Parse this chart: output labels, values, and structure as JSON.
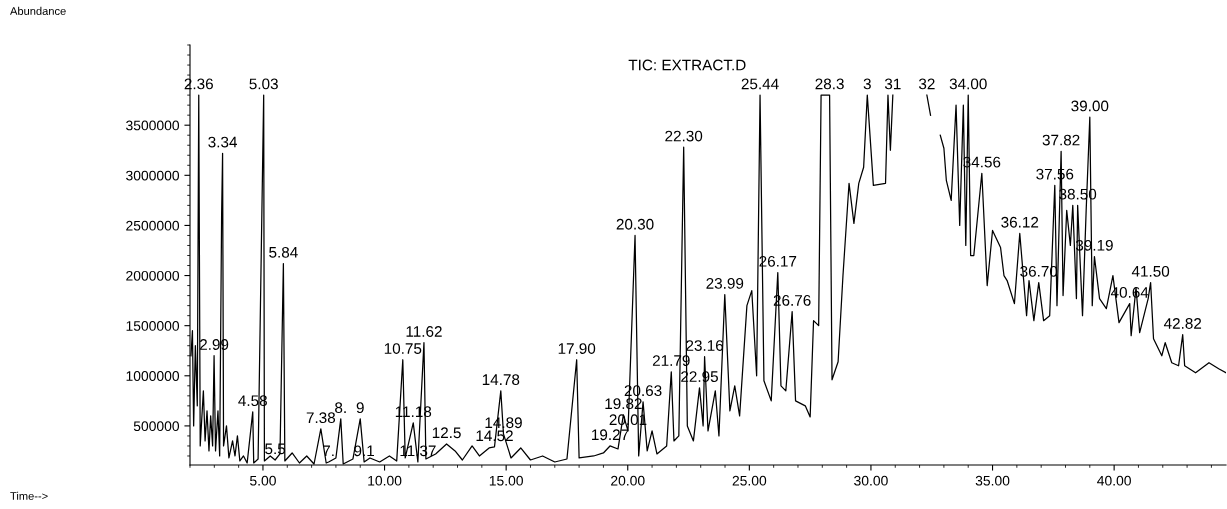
{
  "chart_data": {
    "type": "line",
    "title": "TIC: EXTRACT.D",
    "color": "#000000",
    "x": [
      2.04,
      2.1,
      2.15,
      2.22,
      2.3,
      2.36,
      2.42,
      2.55,
      2.62,
      2.7,
      2.78,
      2.85,
      2.93,
      2.99,
      3.05,
      3.15,
      3.22,
      3.3,
      3.34,
      3.38,
      3.5,
      3.6,
      3.75,
      3.85,
      3.95,
      4.05,
      4.2,
      4.35,
      4.58,
      4.62,
      4.8,
      5.03,
      5.06,
      5.3,
      5.5,
      5.7,
      5.84,
      5.9,
      6.2,
      6.5,
      6.8,
      7.1,
      7.38,
      7.6,
      7.7,
      8.0,
      8.2,
      8.3,
      8.7,
      9.0,
      9.16,
      9.4,
      9.8,
      10.2,
      10.5,
      10.75,
      10.85,
      11.18,
      11.37,
      11.62,
      11.7,
      12.1,
      12.55,
      12.9,
      13.2,
      13.6,
      13.9,
      14.3,
      14.52,
      14.78,
      14.89,
      15.2,
      15.6,
      16.0,
      16.5,
      17.0,
      17.5,
      17.9,
      18.0,
      18.6,
      19.0,
      19.27,
      19.6,
      19.82,
      20.01,
      20.3,
      20.45,
      20.63,
      20.8,
      21.0,
      21.2,
      21.6,
      21.79,
      21.9,
      22.1,
      22.3,
      22.45,
      22.7,
      22.95,
      23.1,
      23.16,
      23.3,
      23.6,
      23.75,
      23.99,
      24.2,
      24.4,
      24.6,
      24.9,
      25.1,
      25.3,
      25.44,
      25.6,
      25.9,
      26.17,
      26.3,
      26.5,
      26.76,
      26.9,
      27.3,
      27.5,
      27.64,
      27.85,
      27.95,
      28.3,
      28.4,
      28.65,
      28.85,
      29.1,
      29.3,
      29.5,
      29.7,
      29.85,
      30.1,
      30.6,
      30.7,
      30.8,
      30.9,
      31.5,
      32.0,
      32.3,
      32.45,
      32.7,
      32.85,
      33.0,
      33.1,
      33.2,
      33.3,
      33.5,
      33.65,
      33.8,
      33.9,
      34.0,
      34.1,
      34.23,
      34.56,
      34.78,
      35.0,
      35.33,
      35.47,
      35.6,
      35.9,
      36.12,
      36.4,
      36.5,
      36.7,
      36.9,
      37.1,
      37.35,
      37.56,
      37.65,
      37.82,
      37.9,
      38.05,
      38.2,
      38.3,
      38.45,
      38.5,
      38.7,
      38.85,
      39.0,
      39.1,
      39.19,
      39.4,
      39.68,
      39.95,
      40.2,
      40.64,
      40.7,
      40.9,
      41.05,
      41.4,
      41.5,
      41.62,
      41.96,
      42.1,
      42.37,
      42.65,
      42.82,
      42.9,
      43.35,
      43.9,
      44.3,
      44.6
    ],
    "values": [
      1200000,
      1450000,
      500000,
      1300000,
      700000,
      3800000,
      300000,
      850000,
      350000,
      650000,
      250000,
      600000,
      300000,
      1200000,
      250000,
      650000,
      200000,
      2600000,
      3220000,
      300000,
      500000,
      180000,
      350000,
      200000,
      400000,
      150000,
      200000,
      130000,
      640000,
      130000,
      170000,
      3800000,
      150000,
      200000,
      160000,
      220000,
      2120000,
      150000,
      230000,
      130000,
      200000,
      120000,
      470000,
      130000,
      140000,
      180000,
      570000,
      120000,
      170000,
      570000,
      140000,
      180000,
      140000,
      200000,
      150000,
      1160000,
      180000,
      530000,
      140000,
      1330000,
      170000,
      220000,
      320000,
      250000,
      160000,
      300000,
      200000,
      280000,
      290000,
      850000,
      420000,
      180000,
      280000,
      160000,
      200000,
      140000,
      170000,
      1160000,
      180000,
      200000,
      230000,
      300000,
      270000,
      610000,
      450000,
      2400000,
      200000,
      740000,
      250000,
      450000,
      220000,
      300000,
      1040000,
      350000,
      400000,
      3280000,
      500000,
      350000,
      880000,
      500000,
      1190000,
      450000,
      850000,
      400000,
      1810000,
      650000,
      900000,
      600000,
      1700000,
      1850000,
      1000000,
      3800000,
      950000,
      750000,
      2030000,
      900000,
      850000,
      1640000,
      750000,
      700000,
      590000,
      1550000,
      1500000,
      3800000,
      3800000,
      960000,
      1140000,
      2000000,
      2920000,
      2520000,
      2920000,
      3080000,
      3800000,
      2900000,
      2920000,
      3800000,
      3250000,
      3800000,
      null,
      null,
      3800000,
      3600000,
      null,
      3400000,
      3270000,
      2950000,
      2850000,
      2750000,
      3700000,
      2500000,
      3700000,
      2300000,
      3800000,
      2200000,
      2200000,
      3020000,
      1900000,
      2450000,
      2280000,
      2000000,
      1950000,
      1720000,
      2420000,
      1600000,
      1950000,
      1550000,
      1930000,
      1550000,
      1600000,
      2900000,
      1700000,
      3240000,
      1800000,
      2650000,
      2300000,
      2700000,
      1770000,
      2700000,
      1600000,
      2650000,
      3580000,
      1700000,
      2190000,
      1770000,
      1670000,
      2000000,
      1530000,
      1720000,
      1400000,
      1880000,
      1430000,
      1770000,
      1930000,
      1370000,
      1200000,
      1330000,
      1130000,
      1100000,
      1410000,
      1100000,
      1030000,
      1130000,
      1070000,
      1030000
    ],
    "xlim": [
      2.0,
      44.6
    ],
    "ylim": [
      110000,
      4300000
    ],
    "xticks": [
      {
        "value": 5,
        "label": "5.00"
      },
      {
        "value": 10,
        "label": "10.00"
      },
      {
        "value": 15,
        "label": "15.00"
      },
      {
        "value": 20,
        "label": "20.00"
      },
      {
        "value": 25,
        "label": "25.00"
      },
      {
        "value": 30,
        "label": "30.00"
      },
      {
        "value": 35,
        "label": "35.00"
      },
      {
        "value": 40,
        "label": "40.00"
      }
    ],
    "yticks": [
      500000,
      1000000,
      1500000,
      2000000,
      2500000,
      3000000,
      3500000
    ],
    "annotations": [
      "Abundance",
      "Time-->",
      {
        "text": "2.36",
        "x": 2.36,
        "y": 3800000
      },
      {
        "text": "5.03",
        "x": 5.03,
        "y": 3800000
      },
      {
        "text": "3.34",
        "x": 3.34,
        "y": 3220000
      },
      {
        "text": "5.84",
        "x": 5.84,
        "y": 2120000
      },
      {
        "text": "2.99",
        "x": 2.99,
        "y": 1200000
      },
      {
        "text": "4.58",
        "x": 4.58,
        "y": 640000
      },
      {
        "text": "5.5",
        "x": 5.5,
        "y": 160000
      },
      {
        "text": "7.38",
        "x": 7.38,
        "y": 470000
      },
      {
        "text": "8.",
        "x": 8.2,
        "y": 570000
      },
      {
        "text": "9",
        "x": 9.0,
        "y": 570000
      },
      {
        "text": "7.",
        "x": 7.7,
        "y": 140000
      },
      {
        "text": "9.1",
        "x": 9.16,
        "y": 140000
      },
      {
        "text": "10.75",
        "x": 10.75,
        "y": 1160000
      },
      {
        "text": "11.62",
        "x": 11.62,
        "y": 1330000
      },
      {
        "text": "11.18",
        "x": 11.18,
        "y": 530000
      },
      {
        "text": "12.5",
        "x": 12.55,
        "y": 320000
      },
      {
        "text": "11.37",
        "x": 11.37,
        "y": 140000
      },
      {
        "text": "14.78",
        "x": 14.78,
        "y": 850000
      },
      {
        "text": "14.89",
        "x": 14.89,
        "y": 420000
      },
      {
        "text": "14.52",
        "x": 14.52,
        "y": 290000
      },
      {
        "text": "17.90",
        "x": 17.9,
        "y": 1160000
      },
      {
        "text": "20.30",
        "x": 20.3,
        "y": 2400000
      },
      {
        "text": "21.79",
        "x": 21.79,
        "y": 1040000
      },
      {
        "text": "20.63",
        "x": 20.63,
        "y": 740000
      },
      {
        "text": "19.82",
        "x": 19.82,
        "y": 610000
      },
      {
        "text": "20.01",
        "x": 20.01,
        "y": 450000
      },
      {
        "text": "19.27",
        "x": 19.27,
        "y": 300000
      },
      {
        "text": "22.30",
        "x": 22.3,
        "y": 3280000
      },
      {
        "text": "23.16",
        "x": 23.16,
        "y": 1190000
      },
      {
        "text": "22.95",
        "x": 22.95,
        "y": 880000
      },
      {
        "text": "23.99",
        "x": 23.99,
        "y": 1810000
      },
      {
        "text": "25.44",
        "x": 25.44,
        "y": 3800000
      },
      {
        "text": "26.17",
        "x": 26.17,
        "y": 2030000
      },
      {
        "text": "26.76",
        "x": 26.76,
        "y": 1640000
      },
      {
        "text": "28.3",
        "x": 28.3,
        "y": 3800000
      },
      {
        "text": "3",
        "x": 29.85,
        "y": 3800000
      },
      {
        "text": "31",
        "x": 30.9,
        "y": 3800000
      },
      {
        "text": "32",
        "x": 32.3,
        "y": 3800000
      },
      {
        "text": "34.00",
        "x": 34.0,
        "y": 3800000
      },
      {
        "text": "34.56",
        "x": 34.56,
        "y": 3020000
      },
      {
        "text": "36.12",
        "x": 36.12,
        "y": 2420000
      },
      {
        "text": "36.70",
        "x": 36.9,
        "y": 1930000
      },
      {
        "text": "37.82",
        "x": 37.82,
        "y": 3240000
      },
      {
        "text": "37.56",
        "x": 37.56,
        "y": 2900000
      },
      {
        "text": "38.50",
        "x": 38.5,
        "y": 2700000
      },
      {
        "text": "39.00",
        "x": 39.0,
        "y": 3580000
      },
      {
        "text": "39.19",
        "x": 39.19,
        "y": 2190000
      },
      {
        "text": "41.50",
        "x": 41.5,
        "y": 1930000
      },
      {
        "text": "40.64",
        "x": 40.64,
        "y": 1720000
      },
      {
        "text": "42.82",
        "x": 42.82,
        "y": 1410000
      }
    ]
  }
}
